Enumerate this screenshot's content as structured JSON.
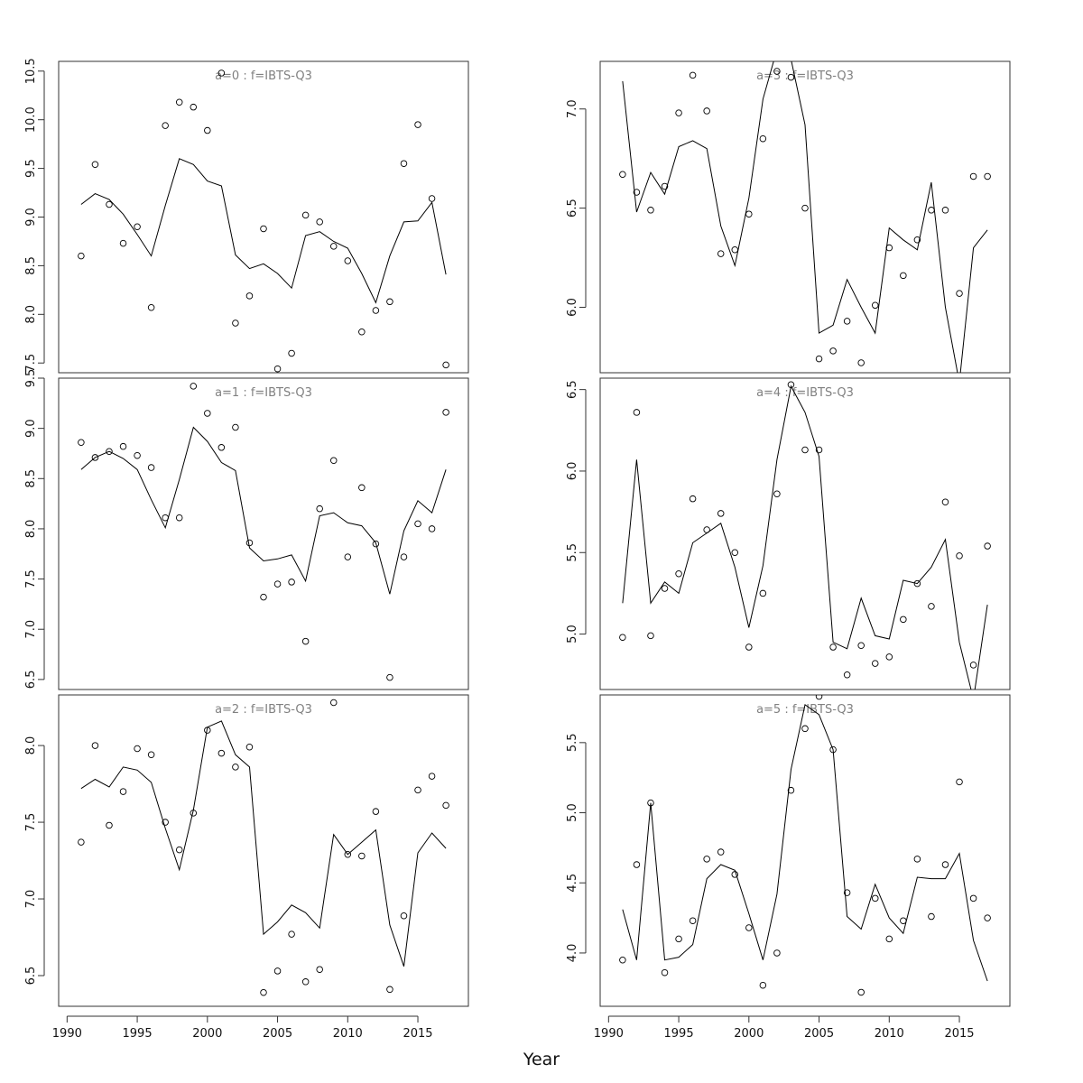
{
  "figure": {
    "xlabel": "Year",
    "x_ticks": [
      1990,
      1995,
      2000,
      2005,
      2010,
      2015
    ],
    "colors": {
      "axes": "#333333",
      "panel_title": "#808080",
      "series": "#000000"
    }
  },
  "chart_data": [
    {
      "type": "scatter",
      "title": "a=0  :  f=IBTS-Q3",
      "xlim": [
        1989.4,
        2018.6
      ],
      "ylim": [
        7.4,
        10.6
      ],
      "y_ticks": [
        "7.5",
        "8.0",
        "8.5",
        "9.0",
        "9.5",
        "10.0",
        "10.5"
      ],
      "x": [
        1991,
        1992,
        1993,
        1994,
        1995,
        1996,
        1997,
        1998,
        1999,
        2000,
        2001,
        2002,
        2003,
        2004,
        2005,
        2006,
        2007,
        2008,
        2009,
        2010,
        2011,
        2012,
        2013,
        2014,
        2015,
        2016,
        2017
      ],
      "series": [
        {
          "type": "scatter",
          "values": [
            8.6,
            9.54,
            9.13,
            8.73,
            8.9,
            8.07,
            9.94,
            10.18,
            10.13,
            9.89,
            10.48,
            7.91,
            8.19,
            8.88,
            7.44,
            7.6,
            9.02,
            8.95,
            8.7,
            8.55,
            7.82,
            8.04,
            8.13,
            9.55,
            9.95,
            9.19,
            7.48
          ]
        },
        {
          "type": "line",
          "values": [
            9.13,
            9.24,
            9.18,
            9.03,
            8.82,
            8.6,
            9.12,
            9.6,
            9.54,
            9.37,
            9.32,
            8.61,
            8.47,
            8.52,
            8.42,
            8.27,
            8.81,
            8.85,
            8.75,
            8.68,
            8.42,
            8.12,
            8.6,
            8.95,
            8.96,
            9.15,
            8.41
          ]
        }
      ]
    },
    {
      "type": "scatter",
      "title": "a=3  :  f=IBTS-Q3",
      "xlim": [
        1989.4,
        2018.6
      ],
      "ylim": [
        5.67,
        7.24
      ],
      "y_ticks": [
        "6.0",
        "6.5",
        "7.0"
      ],
      "x": [
        1991,
        1992,
        1993,
        1994,
        1995,
        1996,
        1997,
        1998,
        1999,
        2000,
        2001,
        2002,
        2003,
        2004,
        2005,
        2006,
        2007,
        2008,
        2009,
        2010,
        2011,
        2012,
        2013,
        2014,
        2015,
        2016,
        2017
      ],
      "series": [
        {
          "type": "scatter",
          "values": [
            6.67,
            6.58,
            6.49,
            6.61,
            6.98,
            7.17,
            6.99,
            6.27,
            6.29,
            6.47,
            6.85,
            7.19,
            7.16,
            6.5,
            5.74,
            5.78,
            5.93,
            5.72,
            6.01,
            6.3,
            6.16,
            6.34,
            6.49,
            6.49,
            6.07,
            6.66,
            6.66
          ]
        },
        {
          "type": "line",
          "values": [
            7.14,
            6.48,
            6.68,
            6.57,
            6.81,
            6.84,
            6.8,
            6.41,
            6.21,
            6.55,
            7.05,
            7.3,
            7.25,
            6.92,
            5.87,
            5.91,
            6.14,
            6.0,
            5.87,
            6.4,
            6.34,
            6.29,
            6.63,
            6.0,
            5.62,
            6.3,
            6.39
          ]
        }
      ]
    },
    {
      "type": "scatter",
      "title": "a=1  :  f=IBTS-Q3",
      "xlim": [
        1989.4,
        2018.6
      ],
      "ylim": [
        6.4,
        9.5
      ],
      "y_ticks": [
        "6.5",
        "7.0",
        "7.5",
        "8.0",
        "8.5",
        "9.0",
        "9.5"
      ],
      "x": [
        1991,
        1992,
        1993,
        1994,
        1995,
        1996,
        1997,
        1998,
        1999,
        2000,
        2001,
        2002,
        2003,
        2004,
        2005,
        2006,
        2007,
        2008,
        2009,
        2010,
        2011,
        2012,
        2013,
        2014,
        2015,
        2016,
        2017
      ],
      "series": [
        {
          "type": "scatter",
          "values": [
            8.86,
            8.71,
            8.77,
            8.82,
            8.73,
            8.61,
            8.11,
            8.11,
            9.42,
            9.15,
            8.81,
            9.01,
            7.86,
            7.32,
            7.45,
            7.47,
            6.88,
            8.2,
            8.68,
            7.72,
            8.41,
            7.85,
            6.52,
            7.72,
            8.05,
            8.0,
            9.16
          ]
        },
        {
          "type": "line",
          "values": [
            8.59,
            8.71,
            8.77,
            8.7,
            8.59,
            8.29,
            8.01,
            8.49,
            9.01,
            8.87,
            8.66,
            8.58,
            7.81,
            7.68,
            7.7,
            7.74,
            7.48,
            8.13,
            8.16,
            8.06,
            8.03,
            7.86,
            7.35,
            7.98,
            8.28,
            8.16,
            8.59
          ]
        }
      ]
    },
    {
      "type": "scatter",
      "title": "a=4  :  f=IBTS-Q3",
      "xlim": [
        1989.4,
        2018.6
      ],
      "ylim": [
        4.66,
        6.57
      ],
      "y_ticks": [
        "5.0",
        "5.5",
        "6.0",
        "6.5"
      ],
      "x": [
        1991,
        1992,
        1993,
        1994,
        1995,
        1996,
        1997,
        1998,
        1999,
        2000,
        2001,
        2002,
        2003,
        2004,
        2005,
        2006,
        2007,
        2008,
        2009,
        2010,
        2011,
        2012,
        2013,
        2014,
        2015,
        2016,
        2017
      ],
      "series": [
        {
          "type": "scatter",
          "values": [
            4.98,
            6.36,
            4.99,
            5.28,
            5.37,
            5.83,
            5.64,
            5.74,
            5.5,
            4.92,
            5.25,
            5.86,
            6.53,
            6.13,
            6.13,
            4.92,
            4.75,
            4.93,
            4.82,
            4.86,
            5.09,
            5.31,
            5.17,
            5.81,
            5.48,
            4.81,
            5.54
          ]
        },
        {
          "type": "line",
          "values": [
            5.19,
            6.07,
            5.19,
            5.32,
            5.25,
            5.56,
            5.62,
            5.68,
            5.41,
            5.04,
            5.42,
            6.07,
            6.52,
            6.36,
            6.09,
            4.95,
            4.91,
            5.22,
            4.99,
            4.97,
            5.33,
            5.31,
            5.41,
            5.58,
            4.95,
            4.6,
            5.18
          ]
        }
      ]
    },
    {
      "type": "scatter",
      "title": "a=2  :  f=IBTS-Q3",
      "xlim": [
        1989.4,
        2018.6
      ],
      "ylim": [
        6.3,
        8.33
      ],
      "y_ticks": [
        "6.5",
        "7.0",
        "7.5",
        "8.0"
      ],
      "x": [
        1991,
        1992,
        1993,
        1994,
        1995,
        1996,
        1997,
        1998,
        1999,
        2000,
        2001,
        2002,
        2003,
        2004,
        2005,
        2006,
        2007,
        2008,
        2009,
        2010,
        2011,
        2012,
        2013,
        2014,
        2015,
        2016,
        2017
      ],
      "series": [
        {
          "type": "scatter",
          "values": [
            7.37,
            8.0,
            7.48,
            7.7,
            7.98,
            7.94,
            7.5,
            7.32,
            7.56,
            8.1,
            7.95,
            7.86,
            7.99,
            6.39,
            6.53,
            6.77,
            6.46,
            6.54,
            8.28,
            7.29,
            7.28,
            7.57,
            6.41,
            6.89,
            7.71,
            7.8,
            7.61
          ]
        },
        {
          "type": "line",
          "values": [
            7.72,
            7.78,
            7.73,
            7.86,
            7.84,
            7.76,
            7.46,
            7.19,
            7.58,
            8.12,
            8.16,
            7.94,
            7.86,
            6.77,
            6.85,
            6.96,
            6.91,
            6.81,
            7.42,
            7.29,
            7.37,
            7.45,
            6.83,
            6.56,
            7.3,
            7.43,
            7.33
          ]
        }
      ]
    },
    {
      "type": "scatter",
      "title": "a=5  :  f=IBTS-Q3",
      "xlim": [
        1989.4,
        2018.6
      ],
      "ylim": [
        3.62,
        5.84
      ],
      "y_ticks": [
        "4.0",
        "4.5",
        "5.0",
        "5.5"
      ],
      "x": [
        1991,
        1992,
        1993,
        1994,
        1995,
        1996,
        1997,
        1998,
        1999,
        2000,
        2001,
        2002,
        2003,
        2004,
        2005,
        2006,
        2007,
        2008,
        2009,
        2010,
        2011,
        2012,
        2013,
        2014,
        2015,
        2016,
        2017
      ],
      "series": [
        {
          "type": "scatter",
          "values": [
            3.95,
            4.63,
            5.07,
            3.86,
            4.1,
            4.23,
            4.67,
            4.72,
            4.56,
            4.18,
            3.77,
            4.0,
            5.16,
            5.6,
            5.83,
            5.45,
            4.43,
            3.72,
            4.39,
            4.1,
            4.23,
            4.67,
            4.26,
            4.63,
            5.22,
            4.39,
            4.25
          ]
        },
        {
          "type": "line",
          "values": [
            4.31,
            3.95,
            5.07,
            3.95,
            3.97,
            4.06,
            4.53,
            4.63,
            4.59,
            4.28,
            3.95,
            4.42,
            5.31,
            5.77,
            5.7,
            5.45,
            4.26,
            4.17,
            4.49,
            4.25,
            4.14,
            4.54,
            4.53,
            4.53,
            4.71,
            4.09,
            3.8
          ]
        }
      ]
    }
  ]
}
